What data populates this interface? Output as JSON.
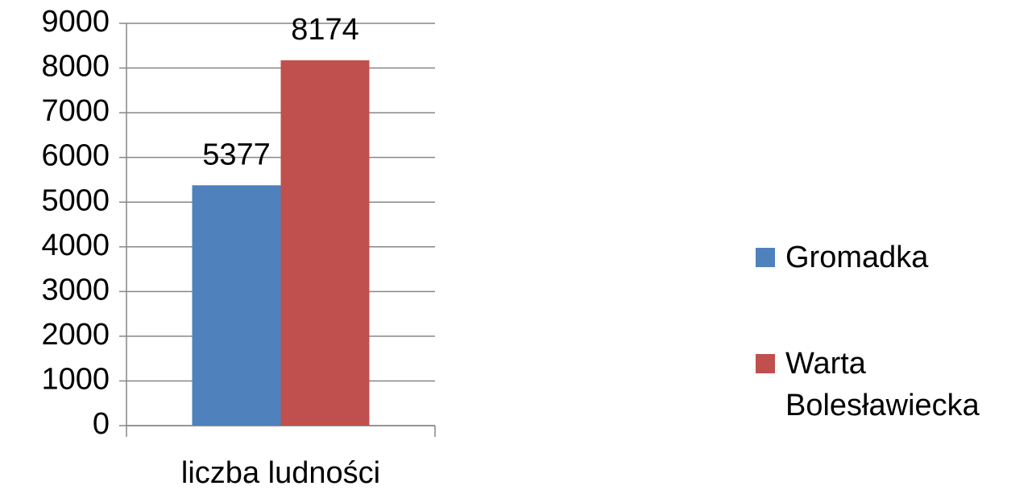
{
  "chart_data": {
    "type": "bar",
    "categories": [
      "liczba ludności"
    ],
    "series": [
      {
        "name": "Gromadka",
        "color": "#4f81bd",
        "values": [
          5377
        ]
      },
      {
        "name": "Warta Bolesławiecka",
        "color": "#c0504d",
        "values": [
          8174
        ]
      }
    ],
    "ylim": [
      0,
      9000
    ],
    "yticks": [
      0,
      1000,
      2000,
      3000,
      4000,
      5000,
      6000,
      7000,
      8000,
      9000
    ],
    "grid": true,
    "legend": "right"
  }
}
